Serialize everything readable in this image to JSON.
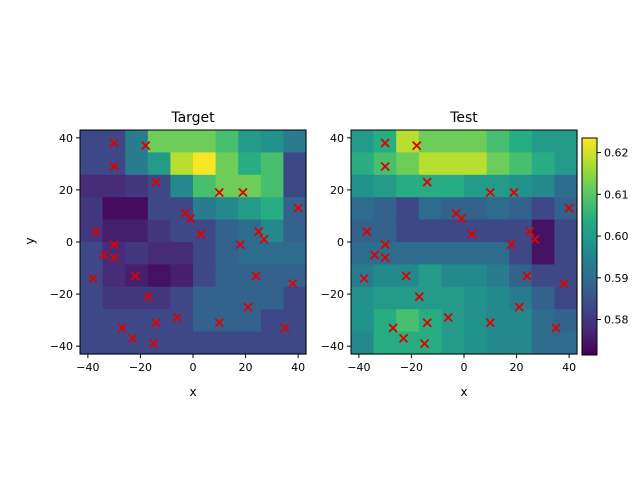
{
  "chart_data": [
    {
      "type": "heatmap",
      "title": "Target",
      "xlabel": "x",
      "ylabel": "y",
      "xlim": [
        -43,
        43
      ],
      "ylim": [
        -43,
        43
      ],
      "xticks": [
        -40,
        -20,
        0,
        20,
        40
      ],
      "yticks": [
        -40,
        -20,
        0,
        20,
        40
      ],
      "grid_shape": [
        10,
        10
      ],
      "cell_values_top_to_bottom": [
        [
          0.583,
          0.583,
          0.593,
          0.612,
          0.612,
          0.612,
          0.608,
          0.6,
          0.598,
          0.593
        ],
        [
          0.583,
          0.583,
          0.593,
          0.6,
          0.618,
          0.623,
          0.612,
          0.604,
          0.608,
          0.583
        ],
        [
          0.578,
          0.578,
          0.58,
          0.583,
          0.596,
          0.608,
          0.612,
          0.612,
          0.608,
          0.583
        ],
        [
          0.58,
          0.573,
          0.573,
          0.583,
          0.583,
          0.593,
          0.596,
          0.6,
          0.604,
          0.588
        ],
        [
          0.58,
          0.576,
          0.576,
          0.58,
          0.583,
          0.583,
          0.588,
          0.59,
          0.596,
          0.588
        ],
        [
          0.583,
          0.578,
          0.58,
          0.578,
          0.578,
          0.583,
          0.588,
          0.59,
          0.59,
          0.59
        ],
        [
          0.583,
          0.578,
          0.576,
          0.574,
          0.576,
          0.583,
          0.588,
          0.588,
          0.588,
          0.588
        ],
        [
          0.583,
          0.58,
          0.58,
          0.58,
          0.583,
          0.588,
          0.588,
          0.588,
          0.588,
          0.583
        ],
        [
          0.583,
          0.583,
          0.583,
          0.583,
          0.583,
          0.588,
          0.588,
          0.588,
          0.583,
          0.583
        ],
        [
          0.583,
          0.583,
          0.583,
          0.583,
          0.583,
          0.583,
          0.583,
          0.583,
          0.583,
          0.583
        ]
      ]
    },
    {
      "type": "heatmap",
      "title": "Test",
      "xlabel": "x",
      "ylabel": "",
      "xlim": [
        -43,
        43
      ],
      "ylim": [
        -43,
        43
      ],
      "xticks": [
        -40,
        -20,
        0,
        20,
        40
      ],
      "yticks": [
        -40,
        -20,
        0,
        20,
        40
      ],
      "grid_shape": [
        10,
        10
      ],
      "cell_values_top_to_bottom": [
        [
          0.6,
          0.604,
          0.618,
          0.612,
          0.612,
          0.612,
          0.608,
          0.604,
          0.6,
          0.6
        ],
        [
          0.604,
          0.608,
          0.612,
          0.618,
          0.618,
          0.618,
          0.612,
          0.608,
          0.604,
          0.6
        ],
        [
          0.598,
          0.6,
          0.604,
          0.604,
          0.604,
          0.6,
          0.6,
          0.598,
          0.596,
          0.59
        ],
        [
          0.59,
          0.588,
          0.583,
          0.59,
          0.588,
          0.588,
          0.59,
          0.588,
          0.583,
          0.588
        ],
        [
          0.588,
          0.588,
          0.583,
          0.583,
          0.583,
          0.583,
          0.583,
          0.583,
          0.574,
          0.583
        ],
        [
          0.59,
          0.59,
          0.59,
          0.59,
          0.59,
          0.59,
          0.59,
          0.583,
          0.574,
          0.583
        ],
        [
          0.593,
          0.596,
          0.596,
          0.6,
          0.596,
          0.596,
          0.593,
          0.588,
          0.583,
          0.583
        ],
        [
          0.598,
          0.6,
          0.6,
          0.6,
          0.6,
          0.598,
          0.596,
          0.593,
          0.588,
          0.583
        ],
        [
          0.598,
          0.604,
          0.608,
          0.604,
          0.6,
          0.598,
          0.596,
          0.596,
          0.59,
          0.588
        ],
        [
          0.596,
          0.604,
          0.604,
          0.604,
          0.6,
          0.598,
          0.596,
          0.596,
          0.59,
          0.59
        ]
      ]
    }
  ],
  "points": [
    [
      -30,
      38
    ],
    [
      -18,
      37
    ],
    [
      -30,
      29
    ],
    [
      -14,
      23
    ],
    [
      10,
      19
    ],
    [
      19,
      19
    ],
    [
      40,
      13
    ],
    [
      -3,
      11
    ],
    [
      -1,
      9
    ],
    [
      3,
      3
    ],
    [
      -37,
      4
    ],
    [
      25,
      4
    ],
    [
      27,
      1
    ],
    [
      18,
      -1
    ],
    [
      -30,
      -1
    ],
    [
      -34,
      -5
    ],
    [
      -30,
      -6
    ],
    [
      -38,
      -14
    ],
    [
      -22,
      -13
    ],
    [
      24,
      -13
    ],
    [
      38,
      -16
    ],
    [
      -17,
      -21
    ],
    [
      21,
      -25
    ],
    [
      -6,
      -29
    ],
    [
      -14,
      -31
    ],
    [
      10,
      -31
    ],
    [
      -27,
      -33
    ],
    [
      35,
      -33
    ],
    [
      -23,
      -37
    ],
    [
      -15,
      -39
    ]
  ],
  "colorbar": {
    "range": [
      0.5715,
      0.6235
    ],
    "ticks": [
      0.58,
      0.59,
      0.6,
      0.61,
      0.62
    ],
    "tick_labels": [
      "0.58",
      "0.59",
      "0.60",
      "0.61",
      "0.62"
    ]
  },
  "colors": {
    "marker": "#e00000",
    "colormap": "viridis"
  }
}
